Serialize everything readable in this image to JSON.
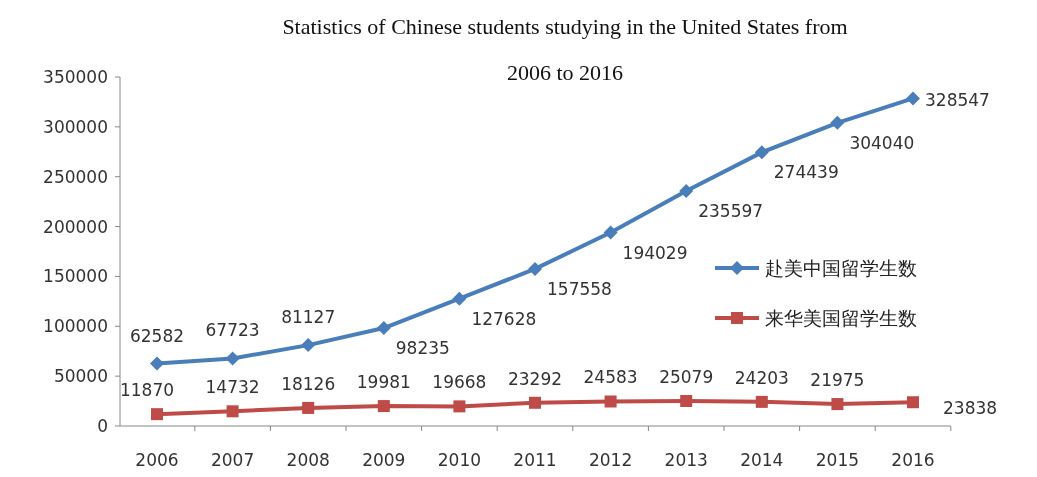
{
  "chart_data": {
    "type": "line",
    "title": "Statistics of Chinese students studying in the United States from 2006 to 2016",
    "categories": [
      "2006",
      "2007",
      "2008",
      "2009",
      "2010",
      "2011",
      "2012",
      "2013",
      "2014",
      "2015",
      "2016"
    ],
    "series": [
      {
        "name": "赴美中国留学生数",
        "color": "#4a7ebb",
        "marker": "diamond",
        "values": [
          62582,
          67723,
          81127,
          98235,
          127628,
          157558,
          194029,
          235597,
          274439,
          304040,
          328547
        ]
      },
      {
        "name": "来华美国留学生数",
        "color": "#be4b48",
        "marker": "square",
        "values": [
          11870,
          14732,
          18126,
          19981,
          19668,
          23292,
          24583,
          25079,
          24203,
          21975,
          23838
        ]
      }
    ],
    "ylim": [
      0,
      350000
    ],
    "yticks": [
      0,
      50000,
      100000,
      150000,
      200000,
      250000,
      300000,
      350000
    ],
    "data_labels": true,
    "legend": "right",
    "grid": false,
    "line_style": "solid"
  }
}
